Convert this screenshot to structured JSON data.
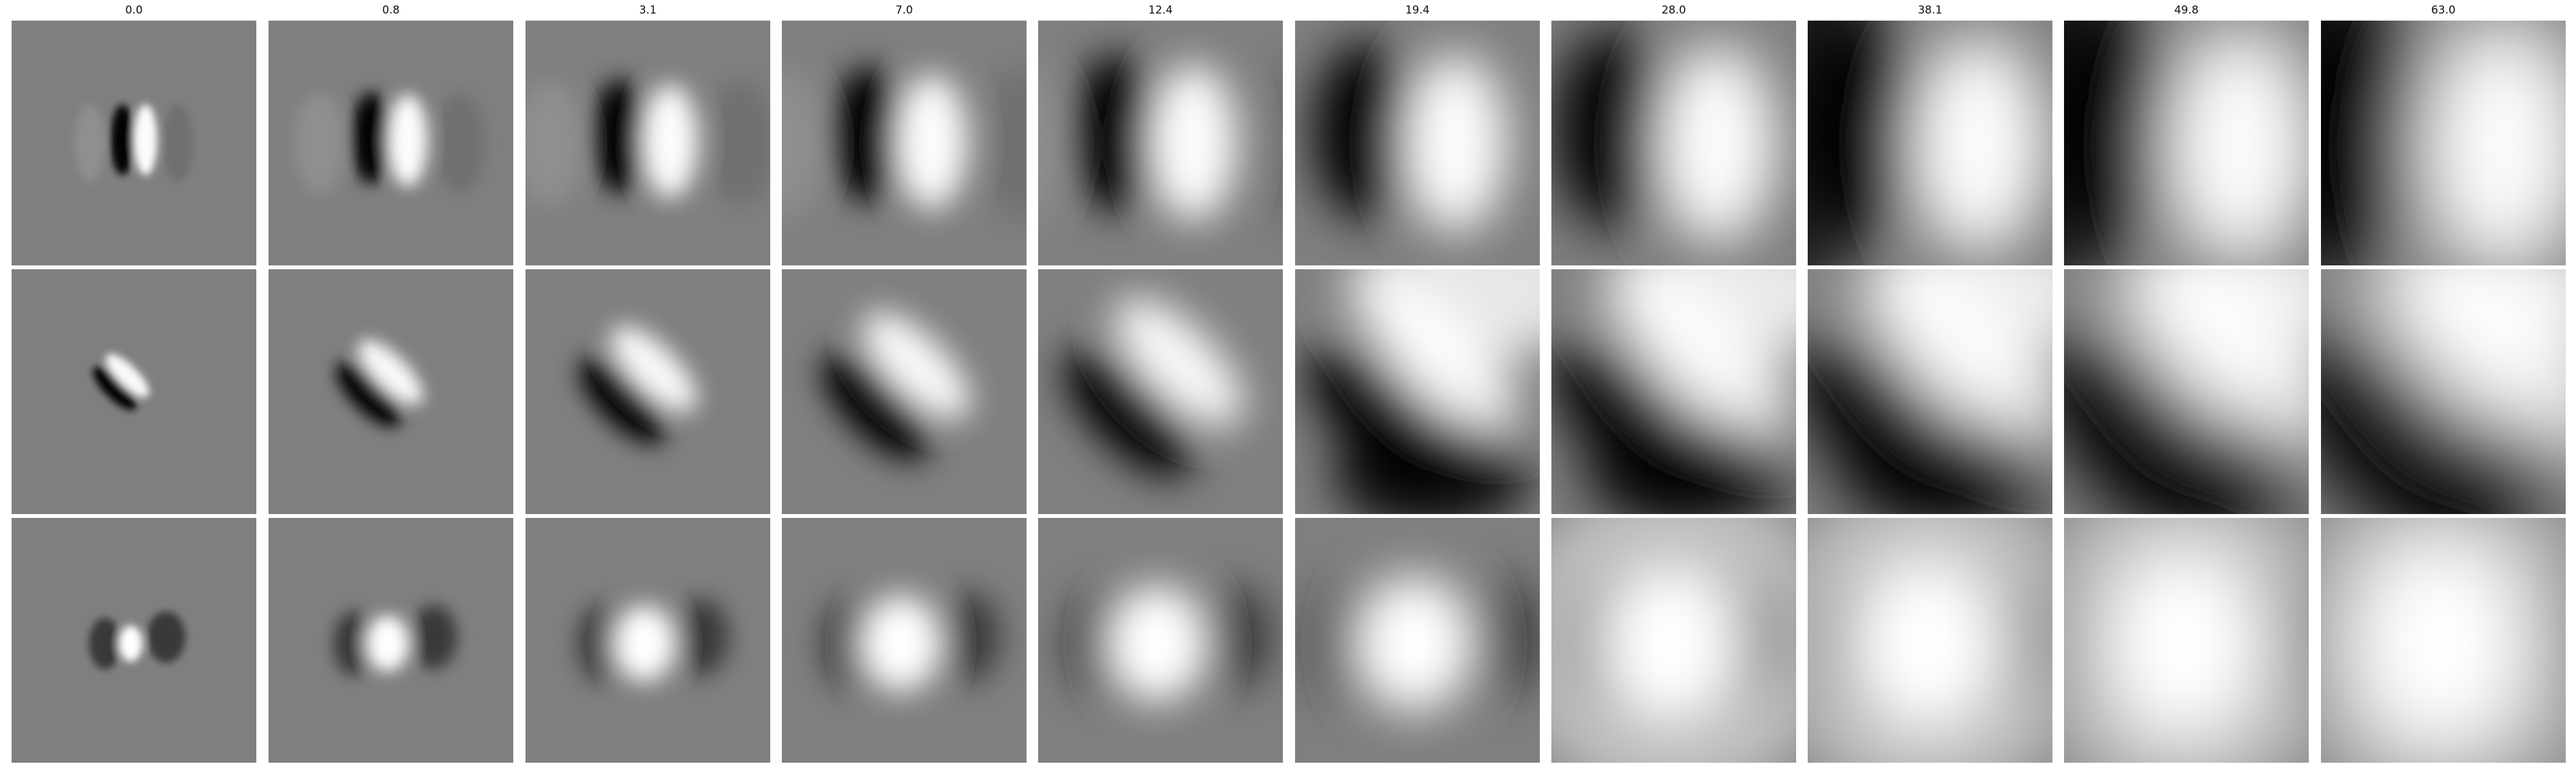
{
  "column_titles": [
    "0.0",
    "0.8",
    "3.1",
    "7.0",
    "12.4",
    "19.4",
    "28.0",
    "38.1",
    "49.8",
    "63.0"
  ],
  "rows": [
    {
      "pattern": "vertical dark-light dipole"
    },
    {
      "pattern": "diagonal dark-light dipole"
    },
    {
      "pattern": "bright central blob with dark side lobes"
    }
  ],
  "colors": {
    "background_gray": "#7f7f7f",
    "dark": "#000000",
    "light": "#ffffff"
  }
}
